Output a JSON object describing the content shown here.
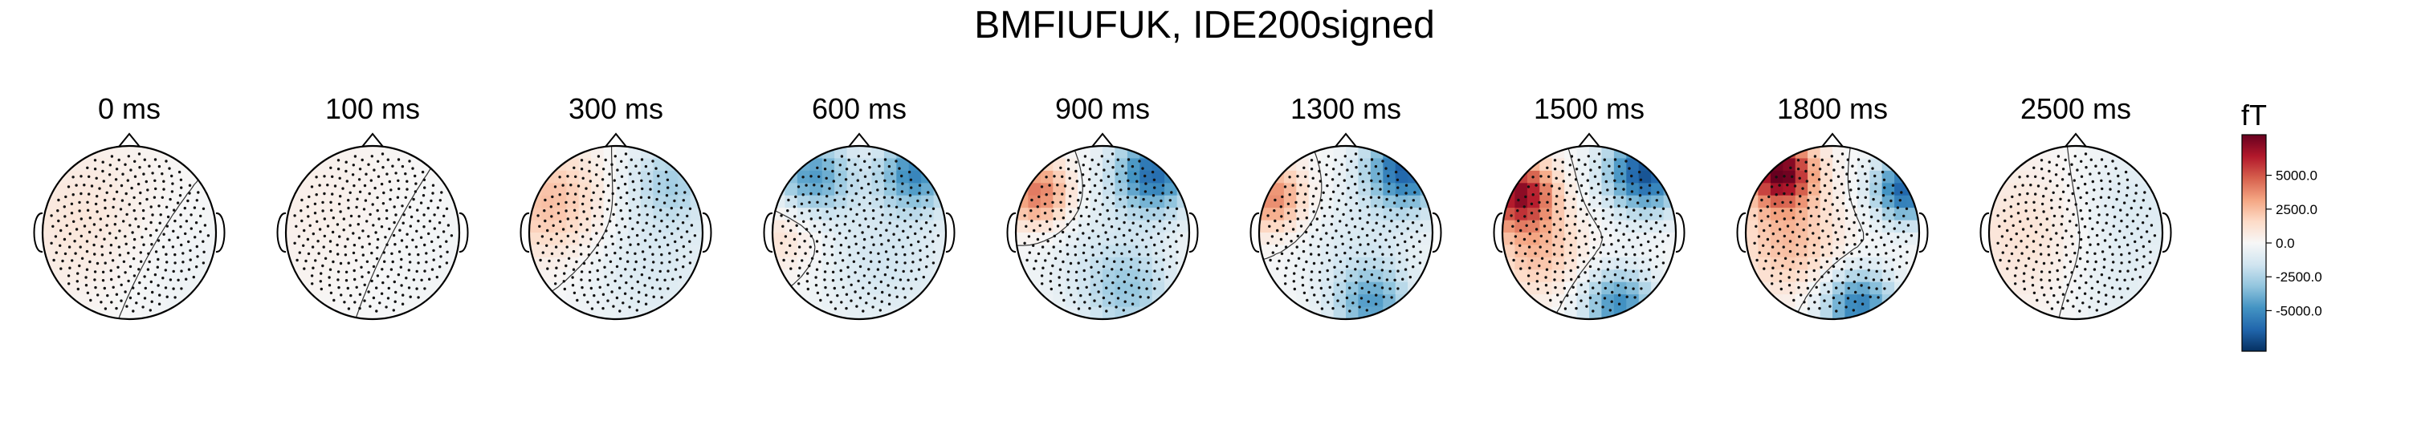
{
  "chart_data": {
    "type": "heatmap",
    "title": "BMFIUFUK, IDE200signed",
    "panels": [
      {
        "label": "0 ms",
        "blobs": [
          {
            "sx": -0.55,
            "sy": -0.15,
            "r": 1.1,
            "v": 1000
          },
          {
            "sx": 0.55,
            "sy": 0.45,
            "r": 1.0,
            "v": -500
          }
        ]
      },
      {
        "label": "100 ms",
        "blobs": [
          {
            "sx": -0.6,
            "sy": -0.3,
            "r": 1.2,
            "v": 500
          },
          {
            "sx": 0.6,
            "sy": 0.3,
            "r": 1.1,
            "v": -300
          }
        ]
      },
      {
        "label": "300 ms",
        "blobs": [
          {
            "sx": -0.75,
            "sy": -0.35,
            "r": 0.75,
            "v": 2500
          },
          {
            "sx": 0.65,
            "sy": -0.6,
            "r": 0.6,
            "v": -2500
          },
          {
            "sx": 0.4,
            "sy": 0.4,
            "r": 1.0,
            "v": -1200
          }
        ]
      },
      {
        "label": "600 ms",
        "blobs": [
          {
            "sx": -0.55,
            "sy": -0.65,
            "r": 0.55,
            "v": -4500
          },
          {
            "sx": 0.65,
            "sy": -0.7,
            "r": 0.5,
            "v": -5000
          },
          {
            "sx": -0.85,
            "sy": 0.0,
            "r": 0.55,
            "v": 1500
          },
          {
            "sx": 0.3,
            "sy": 0.3,
            "r": 1.0,
            "v": -1500
          }
        ]
      },
      {
        "label": "900 ms",
        "blobs": [
          {
            "sx": -0.75,
            "sy": -0.45,
            "r": 0.45,
            "v": 4500
          },
          {
            "sx": 0.6,
            "sy": -0.7,
            "r": 0.55,
            "v": -6000
          },
          {
            "sx": 0.3,
            "sy": 0.7,
            "r": 0.6,
            "v": -2500
          },
          {
            "sx": 0.0,
            "sy": 0.2,
            "r": 1.0,
            "v": -1000
          }
        ]
      },
      {
        "label": "1300 ms",
        "blobs": [
          {
            "sx": -0.85,
            "sy": -0.4,
            "r": 0.45,
            "v": 4000
          },
          {
            "sx": 0.7,
            "sy": -0.75,
            "r": 0.55,
            "v": -6500
          },
          {
            "sx": 0.3,
            "sy": 0.85,
            "r": 0.5,
            "v": -4000
          },
          {
            "sx": 0.2,
            "sy": 0.2,
            "r": 0.9,
            "v": -1200
          }
        ]
      },
      {
        "label": "1500 ms",
        "blobs": [
          {
            "sx": -0.8,
            "sy": -0.45,
            "r": 0.45,
            "v": 7000
          },
          {
            "sx": 0.65,
            "sy": -0.7,
            "r": 0.55,
            "v": -7000
          },
          {
            "sx": -0.6,
            "sy": 0.2,
            "r": 0.6,
            "v": 2500
          },
          {
            "sx": 0.35,
            "sy": 0.85,
            "r": 0.5,
            "v": -5000
          }
        ]
      },
      {
        "label": "1800 ms",
        "blobs": [
          {
            "sx": -0.6,
            "sy": -0.7,
            "r": 0.45,
            "v": 8000
          },
          {
            "sx": 0.85,
            "sy": -0.5,
            "r": 0.45,
            "v": -6500
          },
          {
            "sx": 0.3,
            "sy": 0.85,
            "r": 0.5,
            "v": -5500
          },
          {
            "sx": -0.5,
            "sy": 0.1,
            "r": 0.7,
            "v": 2500
          }
        ]
      },
      {
        "label": "2500 ms",
        "blobs": [
          {
            "sx": -0.55,
            "sy": 0.0,
            "r": 1.0,
            "v": 1200
          },
          {
            "sx": 0.6,
            "sy": -0.3,
            "r": 0.9,
            "v": -1200
          },
          {
            "sx": 0.4,
            "sy": 0.7,
            "r": 0.7,
            "v": -800
          }
        ]
      }
    ],
    "colorbar": {
      "unit": "fT",
      "range": [
        -8000,
        8000
      ],
      "ticks": [
        5000,
        2500,
        0,
        -2500,
        -5000
      ],
      "tick_labels": [
        "5000.0",
        "2500.0",
        "0.0",
        "-2500.0",
        "-5000.0"
      ],
      "colormap": "RdBu_r",
      "colors": [
        "#053061",
        "#2166ac",
        "#4393c3",
        "#92c5de",
        "#d1e5f0",
        "#f7f7f7",
        "#fddbc7",
        "#f4a582",
        "#d6604d",
        "#b2182b",
        "#67001f"
      ]
    },
    "contours": true,
    "sensors_shown": true
  }
}
